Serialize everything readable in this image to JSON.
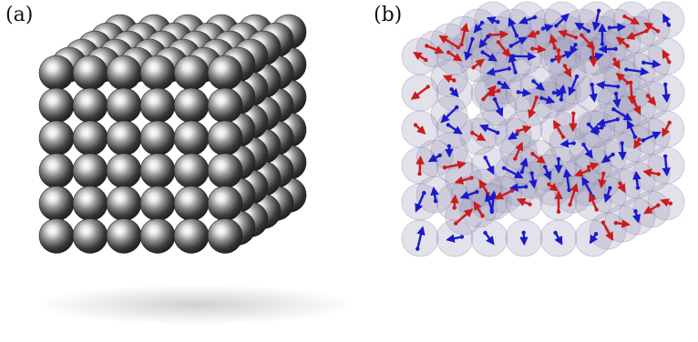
{
  "figure": {
    "panel_a_label": "(a)",
    "panel_b_label": "(b)"
  },
  "colors": {
    "metal_dark": "#2a2a2a",
    "metal_light": "#f2f2f2",
    "spin_red": "#cc1b1b",
    "spin_blue": "#1a1acc",
    "halo": "#9a98b8"
  }
}
